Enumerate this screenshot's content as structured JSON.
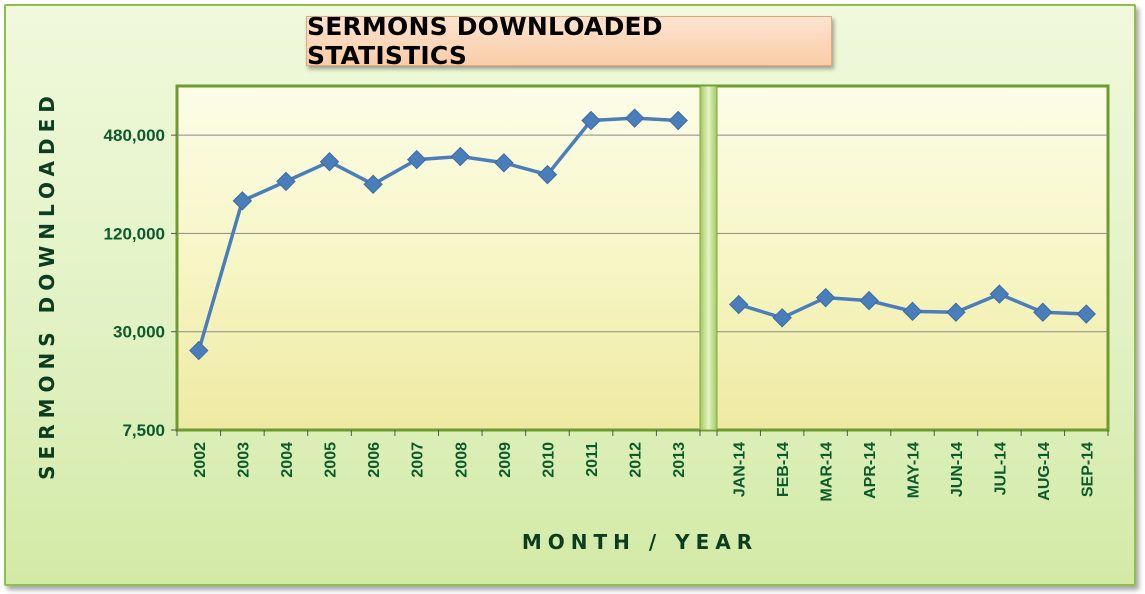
{
  "chart_data": {
    "type": "line",
    "title": "SERMONS DOWNLOADED STATISTICS",
    "xlabel": "MONTH / YEAR",
    "ylabel": "SERMONS DOWNLOADED",
    "y_scale": "log",
    "ylim": [
      7500,
      960000
    ],
    "y_ticks": [
      7500,
      30000,
      120000,
      480000
    ],
    "y_tick_labels": [
      "7,500",
      "30,000",
      "120,000",
      "480,000"
    ],
    "grid": true,
    "legend": "none",
    "series_color": "#4a7ebb",
    "panels": [
      {
        "categories": [
          "2002",
          "2003",
          "2004",
          "2005",
          "2006",
          "2007",
          "2008",
          "2009",
          "2010",
          "2011",
          "2012",
          "2013"
        ],
        "values": [
          23000,
          190000,
          250000,
          330000,
          240000,
          340000,
          355000,
          325000,
          275000,
          590000,
          610000,
          590000
        ]
      },
      {
        "categories": [
          "JAN-14",
          "FEB-14",
          "MAR-14",
          "APR-14",
          "MAY-14",
          "JUN-14",
          "JUL-14",
          "AUG-14",
          "SEP-14"
        ],
        "values": [
          44000,
          36500,
          48500,
          46500,
          40000,
          39500,
          51000,
          39500,
          38500
        ]
      }
    ]
  }
}
